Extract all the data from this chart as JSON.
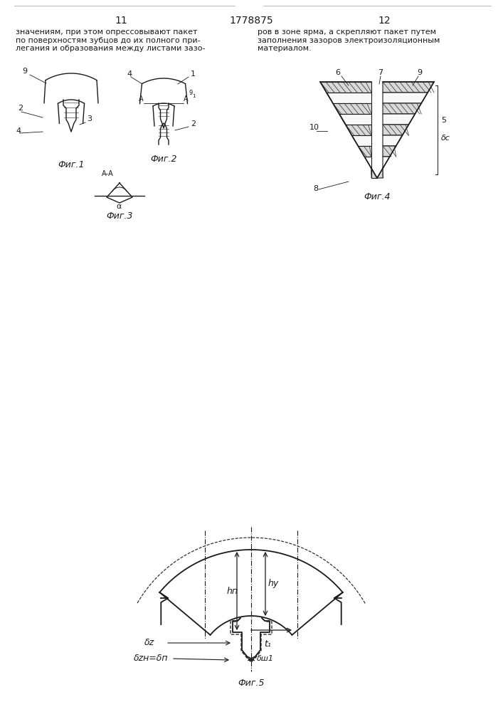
{
  "page_number_left": "11",
  "page_number_center": "1778875",
  "page_number_right": "12",
  "text_left": "значениям, при этом опрессовывают пакет\nпо поверхностям зубцов до их полного при-\nлегания и образования между листами зазо-",
  "text_right": "ров в зоне ярма, а скрепляют пакет путем\nзаполнения зазоров электроизоляционным\nматериалом.",
  "fig1_label": "Фиг.1",
  "fig2_label": "Фиг.2",
  "fig3_label": "Фиг.3",
  "fig4_label": "Фиг.4",
  "fig5_label": "Фиг.5",
  "bg_color": "#ffffff",
  "line_color": "#1a1a1a",
  "fig_label_font": 9,
  "annotation_font": 8,
  "text_font": 8.0
}
